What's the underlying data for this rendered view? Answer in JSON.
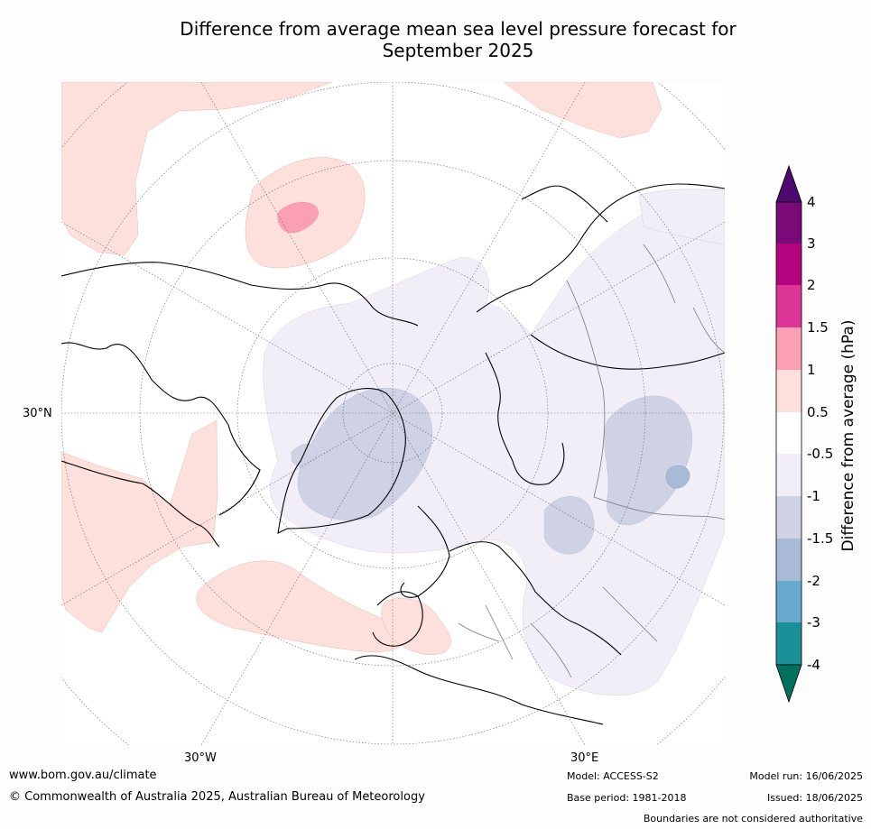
{
  "title_line1": "Difference from average mean sea level pressure forecast for",
  "title_line2": "September 2025",
  "map": {
    "projection": "north polar stereographic",
    "lat_label": "30°N",
    "lon_labels": [
      "30°W",
      "30°E"
    ],
    "anomaly_regions": [
      {
        "name": "north-pacific-positive",
        "category": "0.5 to 1",
        "color": "#fde0dc"
      },
      {
        "name": "kamchatka-positive-core",
        "category": "1 to 1.5",
        "color": "#fba0b4"
      },
      {
        "name": "north-america-positive",
        "category": "0.5 to 1",
        "color": "#fde0dc"
      },
      {
        "name": "north-atlantic-positive",
        "category": "0.5 to 1",
        "color": "#fde0dc"
      },
      {
        "name": "arctic-negative",
        "category": "-1 to -0.5",
        "color": "#f2eef7"
      },
      {
        "name": "greenland-negative",
        "category": "-1.5 to -1",
        "color": "#cfd1e4"
      },
      {
        "name": "siberia-negative",
        "category": "-1.5 to -1",
        "color": "#cfd1e4"
      },
      {
        "name": "russia-negative",
        "category": "-1.5 to -1",
        "color": "#cfd1e4"
      },
      {
        "name": "baikal-negative-core",
        "category": "-2 to -1.5",
        "color": "#a9bad6"
      }
    ]
  },
  "colorbar": {
    "title": "Difference from average (hPa)",
    "ticks": [
      "4",
      "3",
      "2",
      "1.5",
      "1",
      "0.5",
      "-0.5",
      "-1",
      "-1.5",
      "-2",
      "-3",
      "-4"
    ],
    "colors": {
      "above_max": "#4d0a6e",
      "3_to_4": "#7a0a77",
      "2_to_3": "#b2047e",
      "1.5_to_2": "#dd3497",
      "1_to_1.5": "#fba0b4",
      "0.5_to_1": "#fde0dc",
      "-0.5_to_0.5": "#ffffff",
      "-1_to_-0.5": "#f2eef7",
      "-1.5_to_-1": "#cfd1e4",
      "-2_to_-1.5": "#a9bad6",
      "-3_to_-2": "#67a9cf",
      "-4_to_-3": "#1c9099",
      "below_min": "#01705c"
    }
  },
  "footer": {
    "url": "www.bom.gov.au/climate",
    "copyright": "© Commonwealth of Australia 2025, Australian Bureau of Meteorology",
    "model": "Model: ACCESS-S2",
    "base_period": "Base period: 1981-2018",
    "model_run": "Model run: 16/06/2025",
    "issued": "Issued: 18/06/2025",
    "disclaimer": "Boundaries are not considered authoritative"
  }
}
